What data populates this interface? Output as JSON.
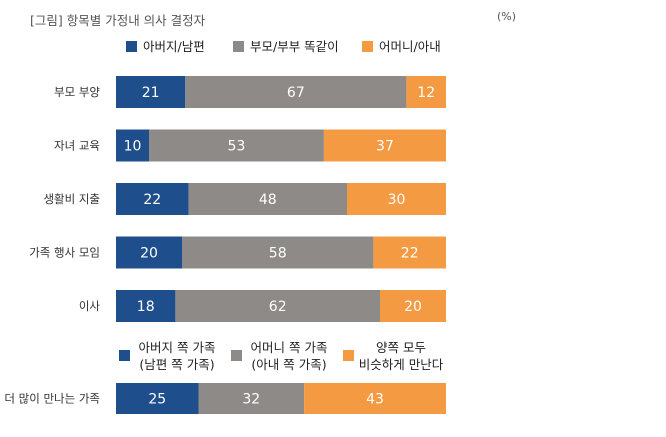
{
  "title": "[그림] 항목별 가정내 의사 결정자",
  "unit": "(%)",
  "colors": {
    "blue": "#1f4e8c",
    "gray": "#8e8a88",
    "orange": "#f39a43",
    "label": "#333333"
  },
  "chart_data": [
    {
      "type": "bar",
      "orientation": "horizontal",
      "stacked": true,
      "xlim": [
        0,
        100
      ],
      "legend": [
        "아버지/남편",
        "부모/부부 똑같이",
        "어머니/아내"
      ],
      "categories": [
        "부모 부양",
        "자녀 교육",
        "생활비 지출",
        "가족 행사 모임",
        "이사"
      ],
      "series": [
        {
          "name": "아버지/남편",
          "color": "#1f4e8c",
          "values": [
            21,
            10,
            22,
            20,
            18
          ]
        },
        {
          "name": "부모/부부 똑같이",
          "color": "#8e8a88",
          "values": [
            67,
            53,
            48,
            58,
            62
          ]
        },
        {
          "name": "어머니/아내",
          "color": "#f39a43",
          "values": [
            12,
            37,
            30,
            22,
            20
          ]
        }
      ]
    },
    {
      "type": "bar",
      "orientation": "horizontal",
      "stacked": true,
      "xlim": [
        0,
        100
      ],
      "legend": [
        [
          "아버지 쪽 가족",
          "(남편 쪽 가족)"
        ],
        [
          "어머니 쪽 가족",
          "(아내 쪽 가족)"
        ],
        [
          "양쪽 모두",
          "비슷하게 만난다"
        ]
      ],
      "categories": [
        "더 많이 만나는 가족"
      ],
      "series": [
        {
          "name": "아버지 쪽 가족 (남편 쪽 가족)",
          "color": "#1f4e8c",
          "values": [
            25
          ]
        },
        {
          "name": "어머니 쪽 가족 (아내 쪽 가족)",
          "color": "#8e8a88",
          "values": [
            32
          ]
        },
        {
          "name": "양쪽 모두 비슷하게 만난다",
          "color": "#f39a43",
          "values": [
            43
          ]
        }
      ]
    }
  ]
}
